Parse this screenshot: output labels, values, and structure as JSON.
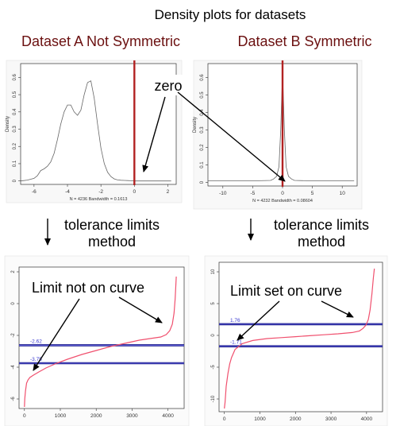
{
  "page": {
    "title": "Density plots for datasets",
    "label_dataset_a": "Dataset A Not Symmetric",
    "label_dataset_b": "Dataset B Symmetric",
    "callout_zero": "zero",
    "method_a_line1": "tolerance limits",
    "method_a_line2": "method",
    "method_b_line1": "tolerance limits",
    "method_b_line2": "method",
    "callout_limit_a": "Limit not on curve",
    "callout_limit_b": "Limit set on curve"
  },
  "colors": {
    "title_dark_red": "#6b1010",
    "zero_line": "#b22222",
    "curve_red": "#f0506e",
    "limit_line": "#1a1a8c",
    "limit_label": "#3a3ad0",
    "density_line": "#666666"
  },
  "chart_data": [
    {
      "id": "density_a",
      "type": "line",
      "xlabel": "N = 4236   Bandwidth = 0.1613",
      "ylabel": "Density",
      "xlim": [
        -6.8,
        2.5
      ],
      "ylim": [
        -0.02,
        0.68
      ],
      "xticks": [
        -6,
        -4,
        -2,
        0,
        2
      ],
      "yticks": [
        0.0,
        0.1,
        0.2,
        0.3,
        0.4,
        0.5,
        0.6
      ],
      "x": [
        -6.8,
        -6.4,
        -6.0,
        -5.8,
        -5.6,
        -5.4,
        -5.2,
        -5.0,
        -4.8,
        -4.6,
        -4.4,
        -4.2,
        -4.0,
        -3.8,
        -3.6,
        -3.4,
        -3.2,
        -3.0,
        -2.8,
        -2.6,
        -2.4,
        -2.2,
        -2.0,
        -1.8,
        -1.6,
        -1.4,
        -1.2,
        -1.0,
        -0.8,
        -0.6,
        -0.4,
        -0.2,
        0.0,
        0.4,
        0.8,
        1.2,
        1.6,
        2.0,
        2.2
      ],
      "y": [
        0.0,
        0.005,
        0.015,
        0.03,
        0.06,
        0.07,
        0.085,
        0.11,
        0.16,
        0.24,
        0.33,
        0.4,
        0.44,
        0.44,
        0.4,
        0.38,
        0.41,
        0.5,
        0.57,
        0.58,
        0.48,
        0.33,
        0.19,
        0.1,
        0.05,
        0.025,
        0.012,
        0.006,
        0.004,
        0.003,
        0.002,
        0.001,
        0.0,
        0.0,
        0.0,
        0.0,
        0.0,
        0.0,
        0.0
      ],
      "vline_x": 0
    },
    {
      "id": "density_b",
      "type": "line",
      "xlabel": "N = 4232   Bandwidth = 0.08604",
      "ylabel": "Density",
      "xlim": [
        -12.5,
        12.5
      ],
      "ylim": [
        -0.02,
        0.68
      ],
      "xticks": [
        -10,
        -5,
        0,
        5,
        10
      ],
      "yticks": [
        0.0,
        0.1,
        0.2,
        0.3,
        0.4,
        0.5,
        0.6
      ],
      "x": [
        -12.5,
        -10,
        -8,
        -6,
        -4,
        -2,
        -1.5,
        -1.0,
        -0.6,
        -0.3,
        0,
        0.3,
        0.6,
        1.0,
        1.5,
        2,
        4,
        6,
        8,
        10,
        12
      ],
      "y": [
        0.01,
        0.01,
        0.01,
        0.01,
        0.01,
        0.012,
        0.02,
        0.035,
        0.09,
        0.3,
        0.63,
        0.3,
        0.09,
        0.035,
        0.02,
        0.012,
        0.01,
        0.01,
        0.01,
        0.01,
        0.01
      ],
      "vline_x": 0
    },
    {
      "id": "quantile_a",
      "type": "line",
      "xlim": [
        -150,
        4450
      ],
      "ylim": [
        -6.6,
        2.3
      ],
      "xticks": [
        0,
        1000,
        2000,
        3000,
        4000
      ],
      "yticks": [
        -6,
        -4,
        -2,
        0,
        2
      ],
      "x": [
        0,
        10,
        30,
        60,
        100,
        150,
        250,
        400,
        600,
        900,
        1200,
        1600,
        2000,
        2400,
        2800,
        3200,
        3500,
        3800,
        3950,
        4050,
        4120,
        4170,
        4200,
        4215,
        4230
      ],
      "y": [
        -6.5,
        -6.0,
        -5.5,
        -5.0,
        -4.8,
        -4.65,
        -4.5,
        -4.3,
        -4.05,
        -3.75,
        -3.5,
        -3.2,
        -2.95,
        -2.7,
        -2.5,
        -2.3,
        -2.2,
        -2.1,
        -1.95,
        -1.7,
        -1.3,
        -0.6,
        0.3,
        1.0,
        1.7
      ],
      "limit_lines": [
        -2.62,
        -3.75
      ],
      "limit_labels": [
        "-2.62",
        "-3.75"
      ]
    },
    {
      "id": "quantile_b",
      "type": "line",
      "xlim": [
        -150,
        4450
      ],
      "ylim": [
        -12,
        11.5
      ],
      "xticks": [
        0,
        1000,
        2000,
        3000,
        4000
      ],
      "yticks": [
        -10,
        -5,
        0,
        5,
        10
      ],
      "x": [
        0,
        20,
        50,
        100,
        150,
        200,
        300,
        500,
        800,
        1200,
        1600,
        2000,
        2400,
        2800,
        3200,
        3600,
        3800,
        3900,
        3980,
        4050,
        4100,
        4150,
        4190,
        4220
      ],
      "y": [
        -11.5,
        -10.5,
        -8,
        -6,
        -4.5,
        -3.5,
        -2.2,
        -1.3,
        -0.8,
        -0.5,
        -0.35,
        -0.2,
        -0.05,
        0.1,
        0.25,
        0.45,
        0.7,
        1.1,
        1.6,
        2.5,
        4,
        6.5,
        9,
        10.5
      ],
      "limit_lines": [
        1.76,
        -1.71
      ],
      "limit_labels": [
        "1.76",
        "-1.71"
      ]
    }
  ]
}
